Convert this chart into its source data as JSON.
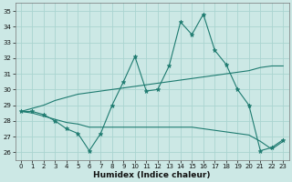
{
  "xlabel": "Humidex (Indice chaleur)",
  "xlim": [
    -0.5,
    23.5
  ],
  "ylim": [
    25.5,
    35.5
  ],
  "yticks": [
    26,
    27,
    28,
    29,
    30,
    31,
    32,
    33,
    34,
    35
  ],
  "xticks": [
    0,
    1,
    2,
    3,
    4,
    5,
    6,
    7,
    8,
    9,
    10,
    11,
    12,
    13,
    14,
    15,
    16,
    17,
    18,
    19,
    20,
    21,
    22,
    23
  ],
  "bg_color": "#cce8e5",
  "grid_color": "#aad4d0",
  "line_color": "#1e7b70",
  "line1_y": [
    28.6,
    28.6,
    28.4,
    28.0,
    27.5,
    27.2,
    26.1,
    27.2,
    29.0,
    30.5,
    32.1,
    29.9,
    30.0,
    31.5,
    34.3,
    33.5,
    34.8,
    32.5,
    31.6,
    30.0,
    29.0,
    26.1,
    26.3,
    26.8
  ],
  "line2_y": [
    28.6,
    28.8,
    29.0,
    29.3,
    29.5,
    29.7,
    29.8,
    29.9,
    30.0,
    30.1,
    30.2,
    30.3,
    30.4,
    30.5,
    30.6,
    30.7,
    30.8,
    30.9,
    31.0,
    31.1,
    31.2,
    31.4,
    31.5,
    31.5
  ],
  "line3_y": [
    28.6,
    28.5,
    28.3,
    28.1,
    27.9,
    27.8,
    27.6,
    27.6,
    27.6,
    27.6,
    27.6,
    27.6,
    27.6,
    27.6,
    27.6,
    27.6,
    27.5,
    27.4,
    27.3,
    27.2,
    27.1,
    26.7,
    26.2,
    26.7
  ]
}
